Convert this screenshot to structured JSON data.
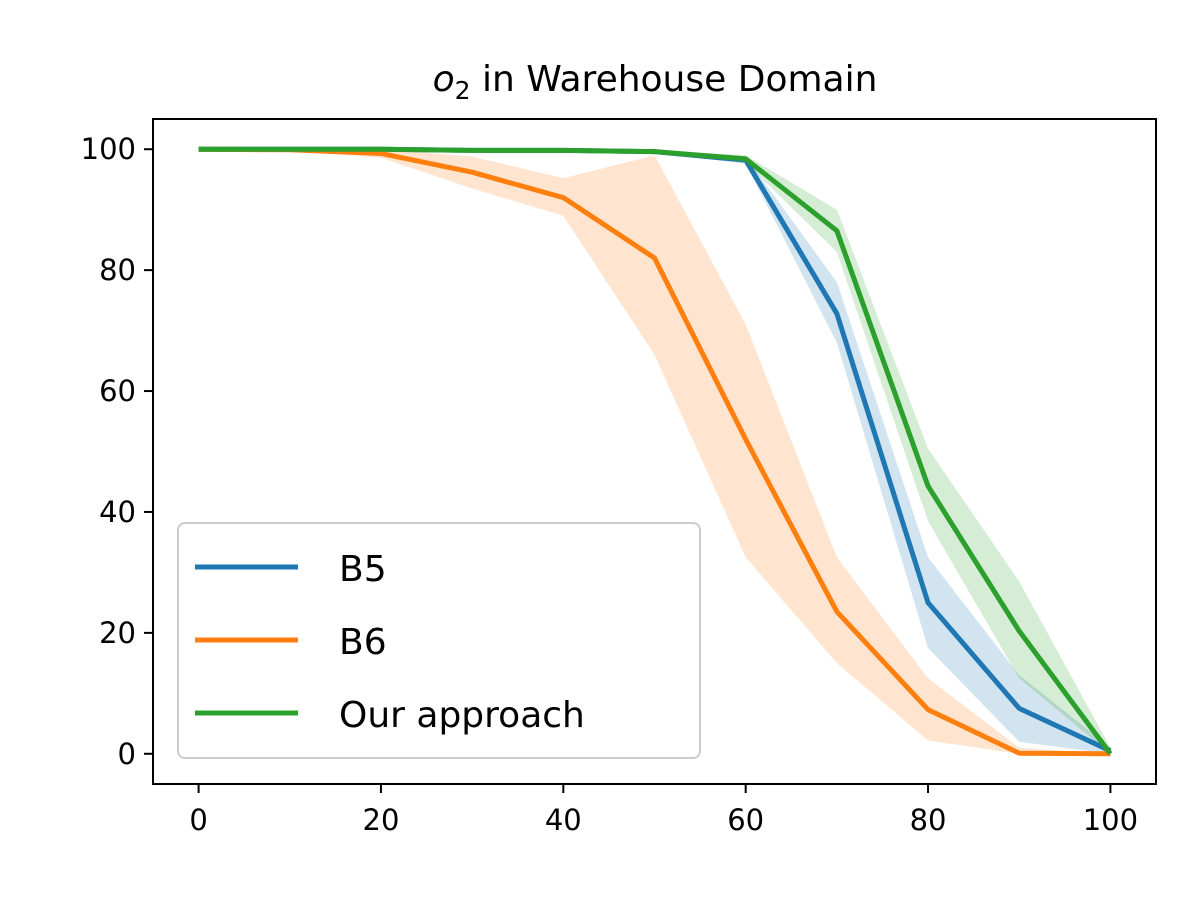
{
  "chart_data": {
    "type": "line",
    "title_prefix": "o",
    "title_subscript": "2",
    "title_suffix": " in Warehouse Domain",
    "xlabel": "",
    "ylabel": "",
    "xlim": [
      -5,
      105
    ],
    "ylim": [
      -5,
      105
    ],
    "xticks": [
      0,
      20,
      40,
      60,
      80,
      100
    ],
    "yticks": [
      0,
      20,
      40,
      60,
      80,
      100
    ],
    "grid": false,
    "legend_position": "lower-left",
    "series": [
      {
        "name": "B5",
        "color": "#1f77b4",
        "x": [
          0,
          10,
          20,
          30,
          40,
          50,
          60,
          70,
          80,
          90,
          100
        ],
        "y": [
          100,
          100,
          100,
          99.8,
          99.8,
          99.6,
          98.2,
          72.8,
          25,
          7.5,
          0.5
        ],
        "lower": [
          100,
          100,
          100,
          99.7,
          99.7,
          99.4,
          97.6,
          68,
          17.5,
          2,
          0
        ],
        "upper": [
          100,
          100,
          100,
          99.9,
          99.9,
          99.8,
          98.8,
          78,
          32.5,
          13,
          1
        ]
      },
      {
        "name": "B6",
        "color": "#ff7f0e",
        "x": [
          0,
          10,
          20,
          30,
          40,
          50,
          60,
          70,
          80,
          90,
          100
        ],
        "y": [
          100,
          99.9,
          99.3,
          96.2,
          92,
          82,
          52,
          23.5,
          7.3,
          0.1,
          0
        ],
        "lower": [
          100,
          99.8,
          98.6,
          93.5,
          89,
          66,
          32.5,
          15,
          2.2,
          0,
          0
        ],
        "upper": [
          100,
          100,
          100,
          98.8,
          95.2,
          99,
          71,
          32.5,
          12.5,
          1,
          0
        ]
      },
      {
        "name": "Our approach",
        "color": "#2ca02c",
        "x": [
          0,
          10,
          20,
          30,
          40,
          50,
          60,
          70,
          80,
          90,
          100
        ],
        "y": [
          100,
          100,
          100,
          99.8,
          99.8,
          99.6,
          98.4,
          86.5,
          44.3,
          20.3,
          0
        ],
        "lower": [
          100,
          100,
          100,
          99.7,
          99.7,
          99.4,
          97.8,
          83,
          38.5,
          12.5,
          0
        ],
        "upper": [
          100,
          100,
          100,
          99.9,
          99.9,
          99.8,
          99,
          90,
          50.5,
          28.5,
          1
        ]
      }
    ]
  }
}
